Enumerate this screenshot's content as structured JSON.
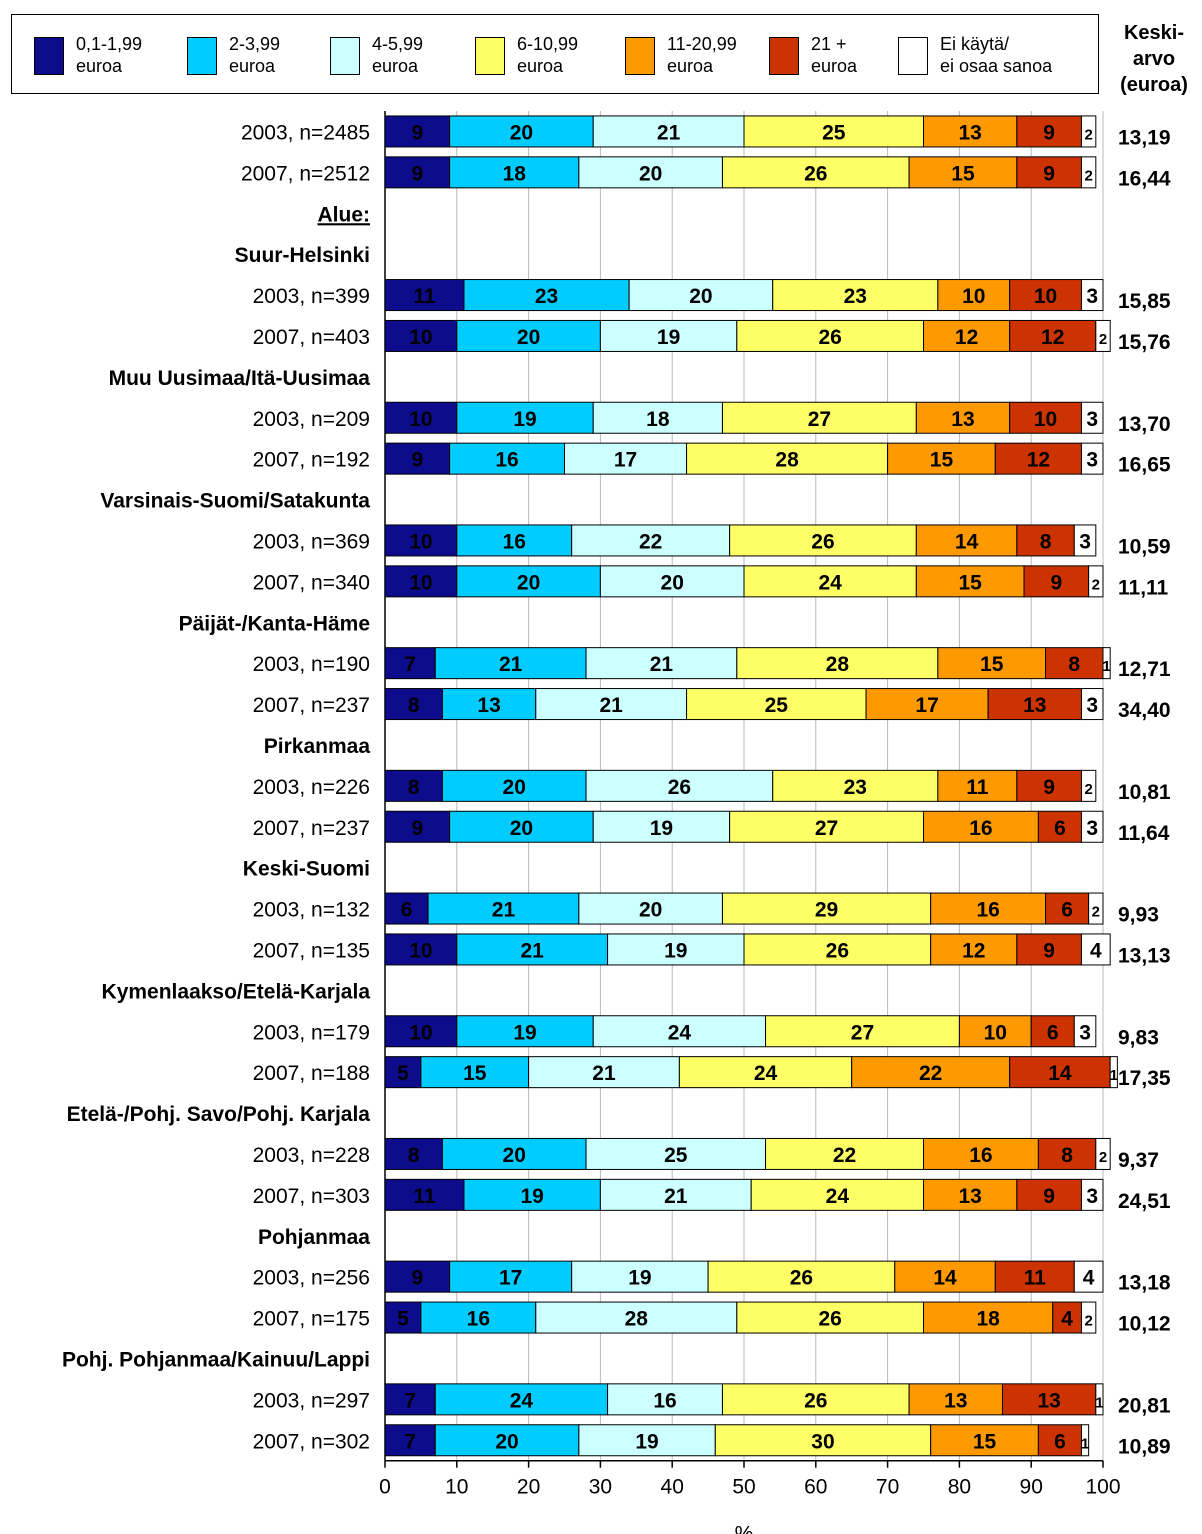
{
  "legend": [
    {
      "label": "0,1-1,99\neuroa",
      "color": "#0c0c8c"
    },
    {
      "label": "2-3,99\neuroa",
      "color": "#00ccff"
    },
    {
      "label": "4-5,99\neuroa",
      "color": "#ccffff"
    },
    {
      "label": "6-10,99\neuroa",
      "color": "#ffff66"
    },
    {
      "label": "11-20,99\neuroa",
      "color": "#ff9900"
    },
    {
      "label": "21 +\neuroa",
      "color": "#cc3300"
    },
    {
      "label": "Ei käytä/\nei osaa sanoa",
      "color": "#ffffff"
    }
  ],
  "mean_header": "Keski-\narvo\n(euroa)",
  "chart_data": {
    "type": "bar",
    "orientation": "horizontal",
    "stacked": true,
    "xlabel": "%",
    "xlim": [
      0,
      100
    ],
    "xticks": [
      0,
      10,
      20,
      30,
      40,
      50,
      60,
      70,
      80,
      90,
      100
    ],
    "grid": true,
    "legend_position": "top",
    "series_names": [
      "0,1-1,99 euroa",
      "2-3,99 euroa",
      "4-5,99 euroa",
      "6-10,99 euroa",
      "11-20,99 euroa",
      "21 + euroa",
      "Ei käytä/ ei osaa sanoa"
    ],
    "rows": [
      {
        "label": "2003, n=2485",
        "values": [
          9,
          20,
          21,
          25,
          13,
          9,
          2
        ],
        "mean": "13,19"
      },
      {
        "label": "2007, n=2512",
        "values": [
          9,
          18,
          20,
          26,
          15,
          9,
          2
        ],
        "mean": "16,44"
      },
      {
        "label": "Alue:",
        "heading": true,
        "underline": true
      },
      {
        "label": "Suur-Helsinki",
        "heading": true
      },
      {
        "label": "2003, n=399",
        "values": [
          11,
          23,
          20,
          23,
          10,
          10,
          3
        ],
        "mean": "15,85"
      },
      {
        "label": "2007, n=403",
        "values": [
          10,
          20,
          19,
          26,
          12,
          12,
          2
        ],
        "mean": "15,76"
      },
      {
        "label": "Muu Uusimaa/Itä-Uusimaa",
        "heading": true
      },
      {
        "label": "2003, n=209",
        "values": [
          10,
          19,
          18,
          27,
          13,
          10,
          3
        ],
        "mean": "13,70"
      },
      {
        "label": "2007, n=192",
        "values": [
          9,
          16,
          17,
          28,
          15,
          12,
          3
        ],
        "mean": "16,65"
      },
      {
        "label": "Varsinais-Suomi/Satakunta",
        "heading": true
      },
      {
        "label": "2003, n=369",
        "values": [
          10,
          16,
          22,
          26,
          14,
          8,
          3
        ],
        "mean": "10,59"
      },
      {
        "label": "2007, n=340",
        "values": [
          10,
          20,
          20,
          24,
          15,
          9,
          2
        ],
        "mean": "11,11"
      },
      {
        "label": "Päijät-/Kanta-Häme",
        "heading": true
      },
      {
        "label": "2003, n=190",
        "values": [
          7,
          21,
          21,
          28,
          15,
          8,
          1
        ],
        "mean": "12,71"
      },
      {
        "label": "2007, n=237",
        "values": [
          8,
          13,
          21,
          25,
          17,
          13,
          3
        ],
        "mean": "34,40"
      },
      {
        "label": "Pirkanmaa",
        "heading": true
      },
      {
        "label": "2003, n=226",
        "values": [
          8,
          20,
          26,
          23,
          11,
          9,
          2
        ],
        "mean": "10,81"
      },
      {
        "label": "2007, n=237",
        "values": [
          9,
          20,
          19,
          27,
          16,
          6,
          3
        ],
        "mean": "11,64"
      },
      {
        "label": "Keski-Suomi",
        "heading": true
      },
      {
        "label": "2003, n=132",
        "values": [
          6,
          21,
          20,
          29,
          16,
          6,
          2
        ],
        "mean": "9,93"
      },
      {
        "label": "2007, n=135",
        "values": [
          10,
          21,
          19,
          26,
          12,
          9,
          4
        ],
        "mean": "13,13"
      },
      {
        "label": "Kymenlaakso/Etelä-Karjala",
        "heading": true
      },
      {
        "label": "2003, n=179",
        "values": [
          10,
          19,
          24,
          27,
          10,
          6,
          3
        ],
        "mean": "9,83"
      },
      {
        "label": "2007, n=188",
        "values": [
          5,
          15,
          21,
          24,
          22,
          14,
          1
        ],
        "mean": "17,35"
      },
      {
        "label": "Etelä-/Pohj. Savo/Pohj. Karjala",
        "heading": true
      },
      {
        "label": "2003, n=228",
        "values": [
          8,
          20,
          25,
          22,
          16,
          8,
          2
        ],
        "mean": "9,37"
      },
      {
        "label": "2007, n=303",
        "values": [
          11,
          19,
          21,
          24,
          13,
          9,
          3
        ],
        "mean": "24,51"
      },
      {
        "label": "Pohjanmaa",
        "heading": true
      },
      {
        "label": "2003, n=256",
        "values": [
          9,
          17,
          19,
          26,
          14,
          11,
          4
        ],
        "mean": "13,18"
      },
      {
        "label": "2007, n=175",
        "values": [
          5,
          16,
          28,
          26,
          18,
          4,
          2
        ],
        "mean": "10,12"
      },
      {
        "label": "Pohj. Pohjanmaa/Kainuu/Lappi",
        "heading": true
      },
      {
        "label": "2003, n=297",
        "values": [
          7,
          24,
          16,
          26,
          13,
          13,
          1
        ],
        "mean": "20,81"
      },
      {
        "label": "2007, n=302",
        "values": [
          7,
          20,
          19,
          30,
          15,
          6,
          1
        ],
        "mean": "10,89"
      }
    ]
  }
}
